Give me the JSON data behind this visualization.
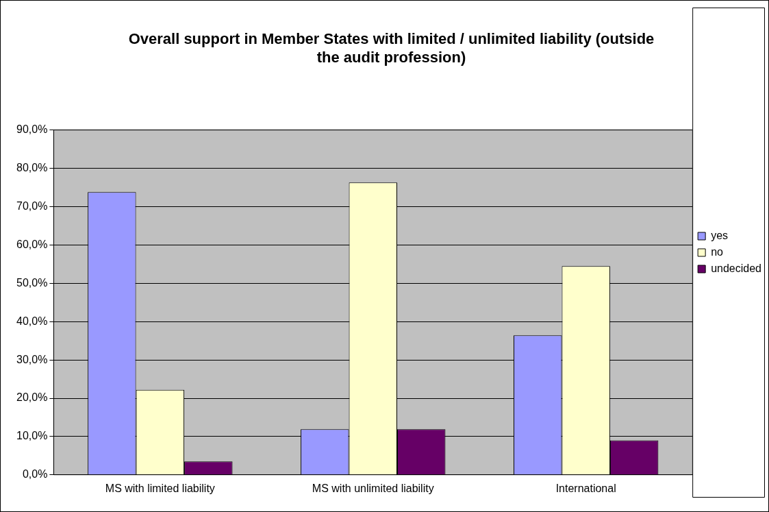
{
  "chart_data": {
    "type": "bar",
    "title": "Overall support in Member States with limited / unlimited liability (outside the audit profession)",
    "categories": [
      "MS with limited liability",
      "MS with unlimited liability",
      "International"
    ],
    "series": [
      {
        "name": "yes",
        "color": "#9999ff",
        "values": [
          73.8,
          11.9,
          36.4
        ]
      },
      {
        "name": "no",
        "color": "#ffffcc",
        "values": [
          22.2,
          76.3,
          54.5
        ]
      },
      {
        "name": "undecided",
        "color": "#660066",
        "values": [
          3.5,
          11.9,
          9.0
        ]
      }
    ],
    "ylim": [
      0,
      90
    ],
    "yticks": [
      {
        "value": 0,
        "label": "0,0%"
      },
      {
        "value": 10,
        "label": "10,0%"
      },
      {
        "value": 20,
        "label": "20,0%"
      },
      {
        "value": 30,
        "label": "30,0%"
      },
      {
        "value": 40,
        "label": "40,0%"
      },
      {
        "value": 50,
        "label": "50,0%"
      },
      {
        "value": 60,
        "label": "60,0%"
      },
      {
        "value": 70,
        "label": "70,0%"
      },
      {
        "value": 80,
        "label": "80,0%"
      },
      {
        "value": 90,
        "label": "90,0%"
      }
    ],
    "grid": "y",
    "legend": "right"
  }
}
